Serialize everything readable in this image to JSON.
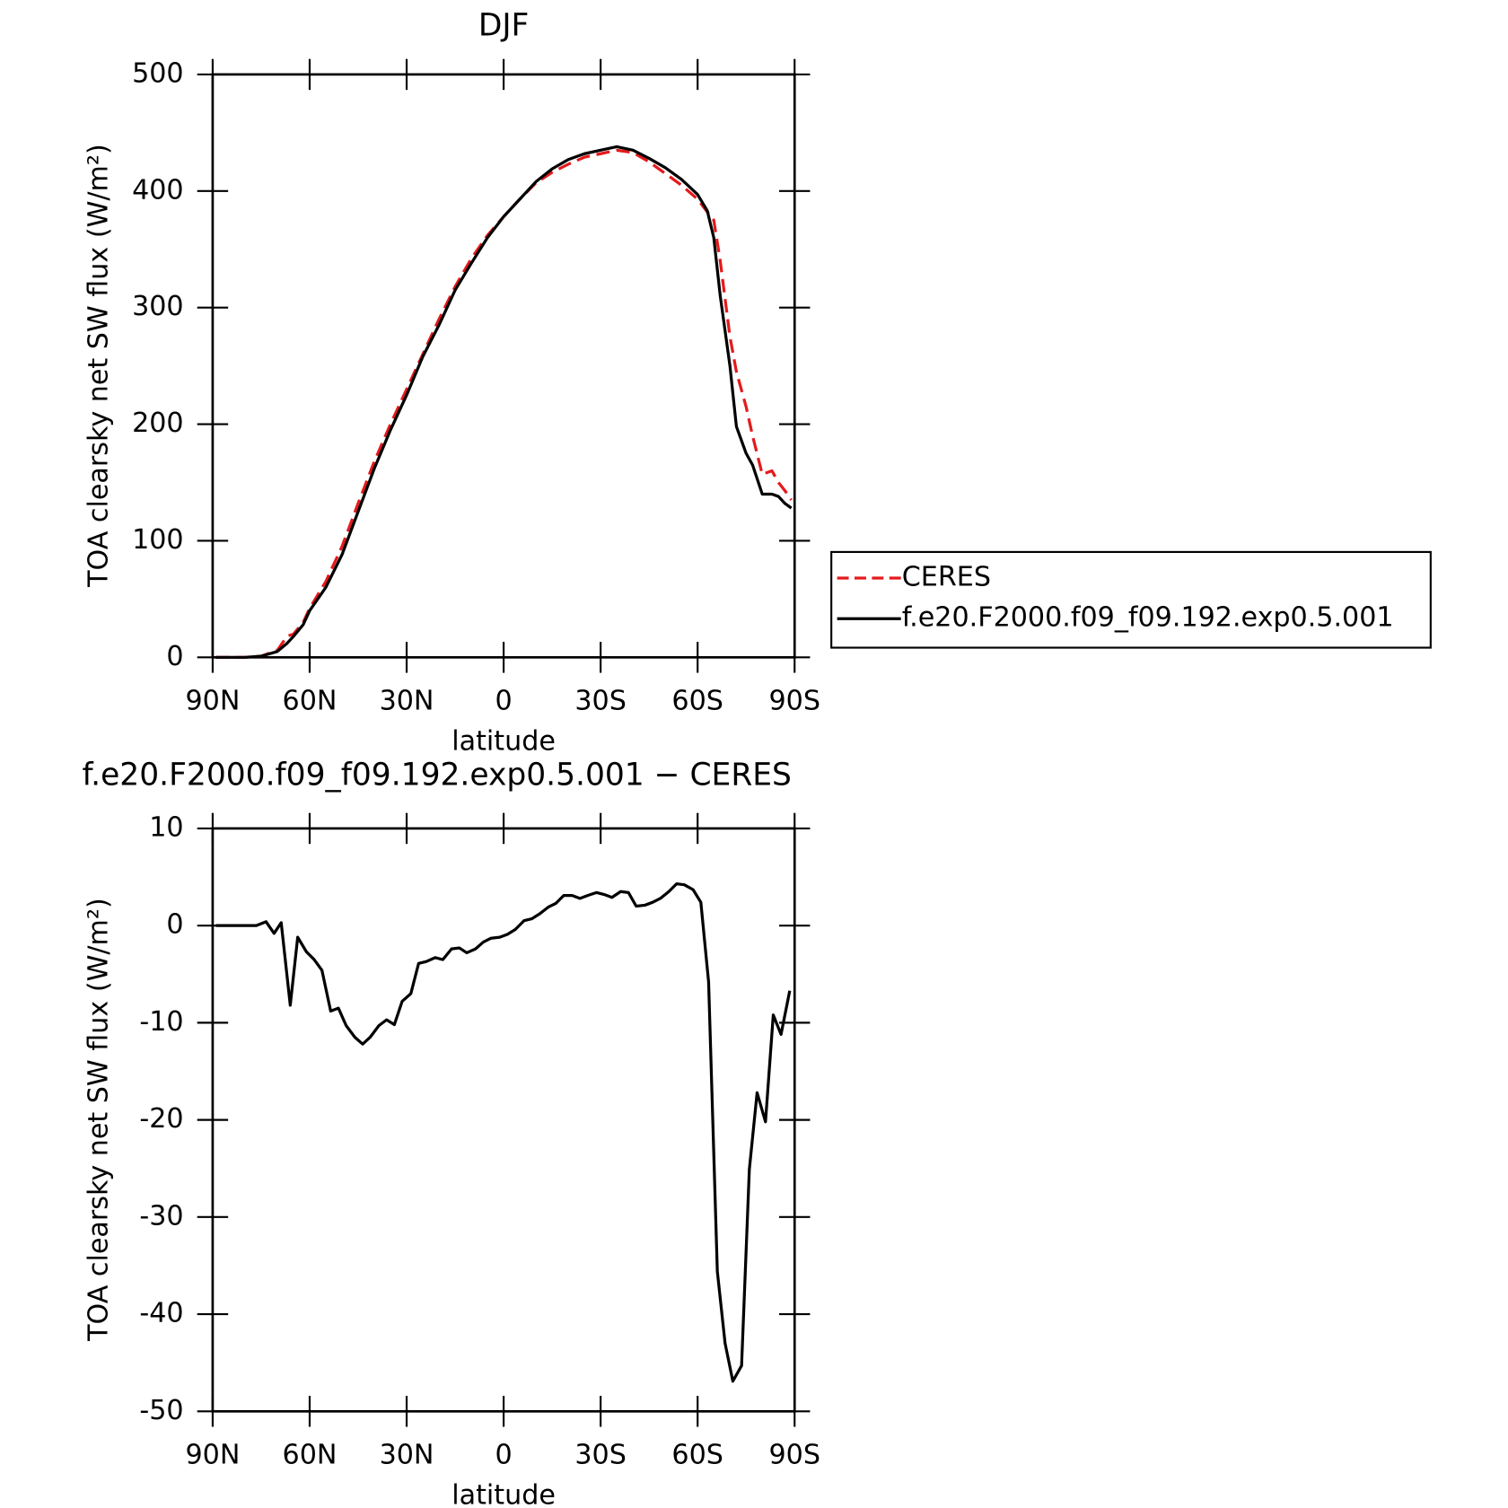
{
  "chart_data": [
    {
      "type": "line",
      "title": "DJF",
      "xlabel": "latitude",
      "ylabel": "TOA clearsky net SW flux (W/m²)",
      "x": [
        89,
        85,
        80,
        75,
        70,
        67,
        65,
        62,
        60,
        55,
        50,
        45,
        40,
        35,
        30,
        25,
        20,
        15,
        10,
        5,
        0,
        -5,
        -10,
        -15,
        -20,
        -25,
        -30,
        -35,
        -40,
        -45,
        -50,
        -55,
        -60,
        -63,
        -65,
        -67,
        -70,
        -72,
        -75,
        -77,
        -80,
        -83,
        -85,
        -87,
        -89
      ],
      "series": [
        {
          "name": "CERES",
          "color": "#e41a1c",
          "style": "dashed",
          "values": [
            0,
            0,
            0,
            1,
            6,
            18,
            20,
            30,
            42,
            65,
            95,
            132,
            168,
            200,
            230,
            260,
            290,
            318,
            342,
            362,
            378,
            393,
            407,
            416,
            423,
            429,
            432,
            435,
            433,
            425,
            415,
            405,
            393,
            382,
            375,
            340,
            275,
            245,
            215,
            190,
            157,
            160,
            150,
            143,
            135
          ]
        },
        {
          "name": "f.e20.F2000.f09_f09.192.exp0.5.001",
          "color": "#000000",
          "style": "solid",
          "values": [
            0,
            0,
            0,
            1,
            5,
            12,
            18,
            28,
            40,
            60,
            88,
            125,
            162,
            195,
            225,
            258,
            285,
            315,
            338,
            360,
            378,
            393,
            408,
            419,
            427,
            432,
            435,
            438,
            435,
            428,
            420,
            410,
            397,
            383,
            360,
            310,
            250,
            198,
            175,
            165,
            140,
            140,
            138,
            132,
            128
          ]
        }
      ],
      "xlim": [
        90,
        -90
      ],
      "xticks": [
        {
          "value": 90,
          "label": "90N"
        },
        {
          "value": 60,
          "label": "60N"
        },
        {
          "value": 30,
          "label": "30N"
        },
        0,
        {
          "value": -30,
          "label": "30S"
        },
        {
          "value": -60,
          "label": "60S"
        },
        {
          "value": -90,
          "label": "90S"
        }
      ],
      "ylim": [
        0,
        500
      ],
      "yticks": [
        0,
        100,
        200,
        300,
        400,
        500
      ]
    },
    {
      "type": "line",
      "title": "f.e20.F2000.f09_f09.192.exp0.5.001 − CERES",
      "xlabel": "latitude",
      "ylabel": "TOA clearsky net SW flux (W/m²)",
      "x": [
        89,
        81,
        76.5,
        73.5,
        71,
        68.8,
        66,
        63.7,
        61,
        58.6,
        56.2,
        53.5,
        51.1,
        48.7,
        46,
        43.6,
        41.3,
        38.6,
        36.2,
        33.8,
        31.4,
        28.7,
        26.3,
        23.9,
        21.2,
        18.8,
        16.1,
        13.7,
        11.4,
        8.7,
        6.3,
        3.9,
        1.2,
        -1.2,
        -3.6,
        -6.3,
        -8.7,
        -11.1,
        -13.8,
        -16.2,
        -18.6,
        -21.2,
        -23.6,
        -26,
        -28.7,
        -31.1,
        -33.5,
        -36.2,
        -38.6,
        -41,
        -43.7,
        -46.1,
        -48.5,
        -51.1,
        -53.5,
        -55.9,
        -58.6,
        -61,
        -63.4,
        -66.1,
        -68.5,
        -70.9,
        -73.6,
        -76,
        -78.4,
        -81,
        -83.4,
        -85.8,
        -88.5
      ],
      "color": "#000000",
      "values": [
        0,
        0,
        0,
        0.4,
        -0.8,
        0.3,
        -8.2,
        -1.2,
        -2.7,
        -3.5,
        -4.6,
        -8.8,
        -8.5,
        -10.3,
        -11.5,
        -12.2,
        -11.5,
        -10.3,
        -9.7,
        -10.2,
        -7.8,
        -7.0,
        -3.9,
        -3.7,
        -3.3,
        -3.5,
        -2.4,
        -2.3,
        -2.8,
        -2.4,
        -1.7,
        -1.3,
        -1.2,
        -0.9,
        -0.4,
        0.5,
        0.7,
        1.2,
        1.9,
        2.3,
        3.1,
        3.1,
        2.8,
        3.1,
        3.4,
        3.2,
        2.9,
        3.5,
        3.4,
        2.0,
        2.1,
        2.4,
        2.8,
        3.5,
        4.3,
        4.2,
        3.7,
        2.4,
        -5.8,
        -35.6,
        -43,
        -46.9,
        -45.3,
        -25.1,
        -17.2,
        -20.2,
        -9.2,
        -11.2,
        -6.7
      ],
      "xlim": [
        90,
        -90
      ],
      "xticks": [
        {
          "value": 90,
          "label": "90N"
        },
        {
          "value": 60,
          "label": "60N"
        },
        {
          "value": 30,
          "label": "30N"
        },
        0,
        {
          "value": -30,
          "label": "30S"
        },
        {
          "value": -60,
          "label": "60S"
        },
        {
          "value": -90,
          "label": "90S"
        }
      ],
      "ylim": [
        -50,
        10
      ],
      "yticks": [
        -50,
        -40,
        -30,
        -20,
        -10,
        0,
        10
      ]
    }
  ]
}
